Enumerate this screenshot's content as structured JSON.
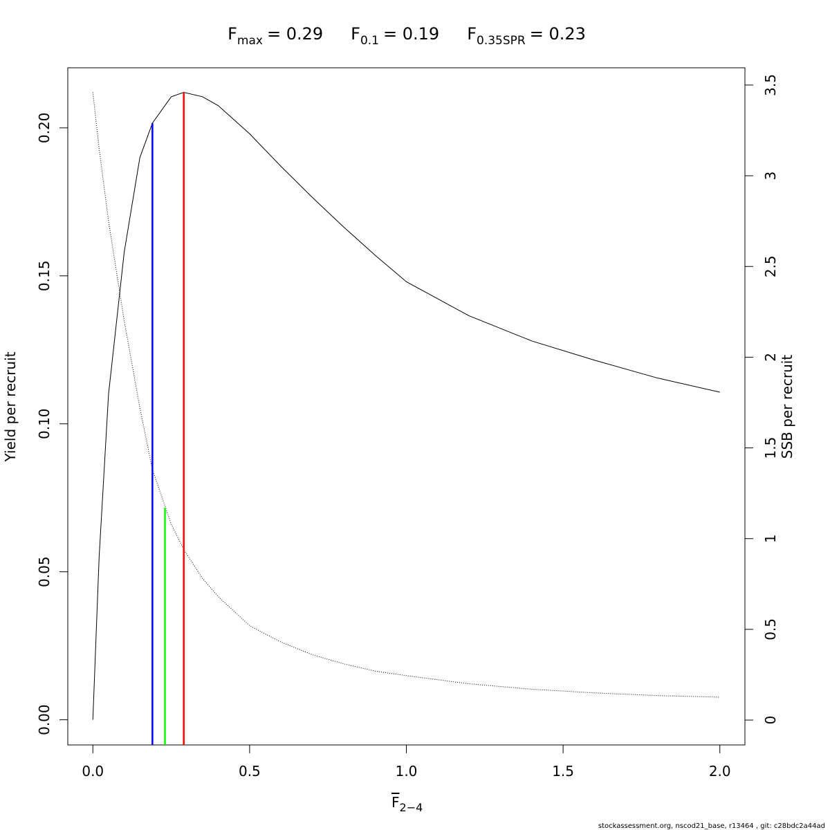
{
  "chart_data": {
    "type": "line",
    "title_parts": [
      {
        "main": "F",
        "sub": "max",
        "rest": "= 0.29"
      },
      {
        "main": "F",
        "sub": "0.1",
        "rest": "= 0.19"
      },
      {
        "main": "F",
        "sub": "0.35SPR",
        "rest": "= 0.23"
      }
    ],
    "x_label": "F",
    "x_label_sub": "2−4",
    "y_label": "Yield per recruit",
    "y2_label": "SSB per recruit",
    "footer": "stockassessment.org, nscod21_base, r13464 , git: c28bdc2a44ad",
    "x": [
      0,
      0.02,
      0.05,
      0.1,
      0.15,
      0.19,
      0.25,
      0.29,
      0.35,
      0.4,
      0.5,
      0.6,
      0.7,
      0.8,
      0.9,
      1.0,
      1.2,
      1.4,
      1.6,
      1.8,
      2.0
    ],
    "series": [
      {
        "name": "Yield per recruit",
        "color": "#000000",
        "axis": "y",
        "values": [
          0,
          0.055,
          0.11,
          0.158,
          0.19,
          0.2016,
          0.2105,
          0.212,
          0.2105,
          0.2075,
          0.198,
          0.187,
          0.1765,
          0.1665,
          0.157,
          0.148,
          0.1365,
          0.128,
          0.1215,
          0.1155,
          0.1107
        ]
      },
      {
        "name": "SSB per recruit",
        "color": "#000000",
        "axis": "y2",
        "dashed": true,
        "values": [
          3.46,
          3.15,
          2.75,
          2.2,
          1.72,
          1.38,
          1.08,
          0.94,
          0.78,
          0.68,
          0.52,
          0.43,
          0.36,
          0.31,
          0.27,
          0.245,
          0.2,
          0.17,
          0.15,
          0.135,
          0.126
        ]
      }
    ],
    "ref_lines": [
      {
        "x": 0.19,
        "top": 0.2016,
        "axis": "y",
        "color": "#0000ff"
      },
      {
        "x": 0.23,
        "top": 1.17,
        "axis": "y2",
        "color": "#00ff00"
      },
      {
        "x": 0.29,
        "top": 0.212,
        "axis": "y",
        "color": "#ff0000"
      }
    ],
    "xlim": [
      -0.08,
      2.08
    ],
    "xticks": [
      {
        "value": 0,
        "label": "0.0"
      },
      0.5,
      {
        "value": 1,
        "label": "1.0"
      },
      1.5,
      {
        "value": 2,
        "label": "2.0"
      }
    ],
    "ylim": [
      -0.0085,
      0.2203
    ],
    "yticks": [
      {
        "value": 0,
        "label": "0.00"
      },
      0.05,
      {
        "value": 0.1,
        "label": "0.10"
      },
      0.15,
      {
        "value": 0.2,
        "label": "0.20"
      }
    ],
    "y2lim": [
      -0.137,
      3.595
    ],
    "y2ticks": [
      0,
      0.5,
      1,
      1.5,
      2,
      2.5,
      3,
      3.5
    ]
  }
}
